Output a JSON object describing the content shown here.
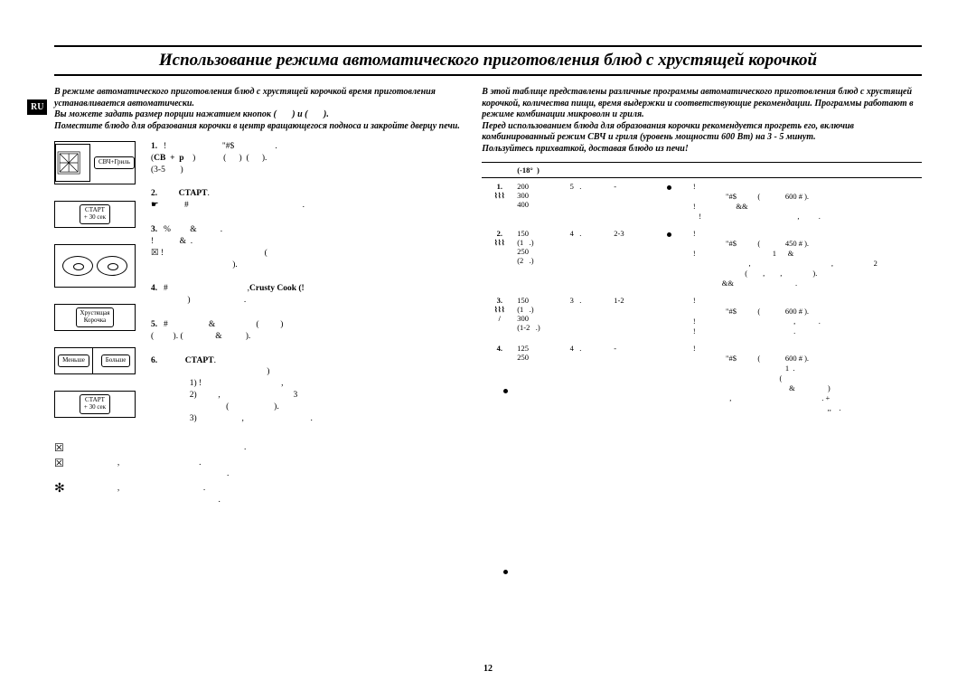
{
  "lang_badge": "RU",
  "page_number": "12",
  "title": "Использование режима автоматического приготовления блюд с хрустящей корочкой",
  "left": {
    "intro": "В режиме автоматического приготовления блюд с хрустящей корочкой время приготовления устанавливается автоматически.\nВы можете задать размер порции нажатием кнопок (       ) и (       ).\nПоместите блюдо для образования корочки в центр вращающегося подноса и закройте дверцу печи.",
    "buttons": {
      "grill_label": "СВЧ+Гриль",
      "start_label_a": "СТАРТ",
      "start_label_b": "+ 30 сек",
      "crusty_a": "Хрустящая",
      "crusty_b": "Корочка",
      "less": "Меньше",
      "more": "Больше"
    },
    "steps": [
      {
        "n": "1.",
        "t": "!                          \"#$                   .\n(",
        "bold": "СВ  +  p",
        "tail": "    )             (      )  (      ).\n(3-5       )"
      },
      {
        "n": "2.",
        "t": "       ",
        "bold": "СТАРТ",
        "tail": ".\n☛            #                                                     ."
      },
      {
        "n": "3.",
        "t": "%         &           .\n!            &  .\n☒ !                                               (\n                                      )."
      },
      {
        "n": "4.",
        "t": "#                                     ,",
        "bold": "Crusty Cook (!",
        "tail": "\n                 )                         ."
      },
      {
        "n": "5.",
        "t": "#                   &                   (          )\n(         ). (               &           )."
      },
      {
        "n": "6.",
        "t": "          ",
        "bold": "СТАРТ",
        "tail": ".\n                                                      )\n                  1) !                                     ,\n                  2)          ,                                  3\n                                   (                     ).\n                  3)                     ,                               ."
      }
    ],
    "notes": [
      "                                                                                .",
      "                     ,                                     .\n                                                                        .",
      "                     ,                                       .\n                                                                    ."
    ]
  },
  "right": {
    "intro": "В этой таблице представлены различные программы автоматического приготовления блюд с хрустящей корочкой, количества пищи, время выдержки и соответствующие рекомендации. Программы работают в режиме комбинации микроволн и гриля.\nПеред использованием блюда для образования корочки рекомендуется прогреть его, включив комбинированный режим СВЧ и гриля (уровень мощности 600 Вт) на 3 - 5 минут.\nПользуйтесь прихваткой, доставая блюдо из печи!",
    "table": {
      "head": {
        "c1": "",
        "c2": "(-18°  )",
        "c3": "",
        "c4": "",
        "c5": "",
        "c6": ""
      },
      "rows": [
        {
          "n": "1.",
          "sym": "⌇⌇⌇",
          "c2": "200\n300\n400",
          "c3": "5   .",
          "c4": "-",
          "c5": "•",
          "c6": "!\n                 \"#$           (             600 # ).              \n!                     &&      \n   !                                                  ,          ."
        },
        {
          "n": "2.",
          "sym": "⌇⌇⌇",
          "c2": "150\n(1   .)\n250\n(2   .)",
          "c3": "4   .",
          "c4": "2-3",
          "c5": "•",
          "c6": "!\n                 \"#$           (             450 # ).\n!                                        1      &                      \n                             ,                                          ,                     2\n                           (        ,        ,                ).\n               &&                                ."
        },
        {
          "n": "3.",
          "sym": "⌇⌇⌇",
          "c2": "150\n(1   .)\n300\n(1-2   .)",
          "extra": "/",
          "c3": "3   .",
          "c4": "1-2",
          "c5": "",
          "c6": "!\n                 \"#$           (             600 # ).\n!                                                   ,            .\n!                                                   ."
        },
        {
          "n": "4.",
          "sym": "",
          "c2": "125\n250",
          "c3": "4   .",
          "c4": "-",
          "c5": "",
          "c6": "!\n                 \"#$           (             600 # ).\n                                                1  .\n                                             (\n                                                  &                 )\n                   ,                                               . +\n                                                                      ,,    ."
        }
      ]
    }
  }
}
